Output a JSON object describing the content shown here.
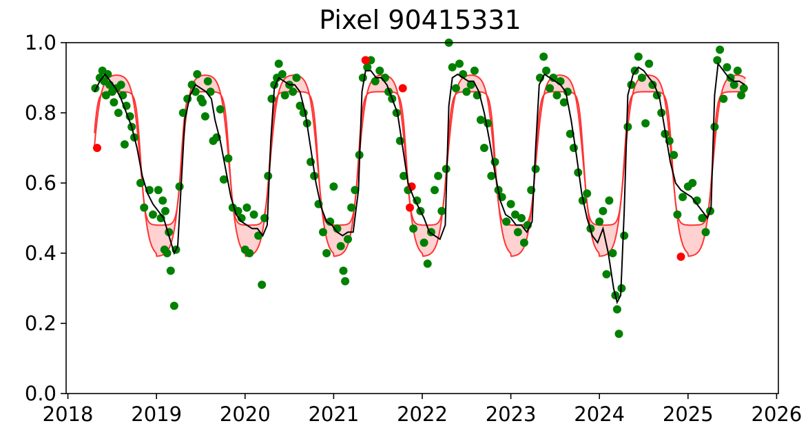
{
  "chart_data": {
    "type": "scatter",
    "title": "Pixel 90415331",
    "xlabel": "",
    "ylabel": "",
    "xlim": [
      2017.98,
      2026.02
    ],
    "ylim": [
      0.0,
      1.0
    ],
    "xticks": [
      2018,
      2019,
      2020,
      2021,
      2022,
      2023,
      2024,
      2025,
      2026
    ],
    "yticks": [
      0.0,
      0.2,
      0.4,
      0.6,
      0.8,
      1.0
    ],
    "xtick_labels": [
      "2018",
      "2019",
      "2020",
      "2021",
      "2022",
      "2023",
      "2024",
      "2025",
      "2026"
    ],
    "ytick_labels": [
      "0.0",
      "0.2",
      "0.4",
      "0.6",
      "0.8",
      "1.0"
    ],
    "grid": false,
    "colors": {
      "observed": "#008000",
      "outlier": "#ff0000",
      "envelope": "#ff3333",
      "band": "#ffcccc",
      "smoothed": "#000000"
    },
    "envelope": {
      "inner_high": 0.86,
      "outer_high": 0.91,
      "inner_low": 0.48,
      "outer_low": 0.39,
      "start": 2018.3,
      "end": 2025.65,
      "season_years": [
        2018,
        2019,
        2020,
        2021,
        2022,
        2023,
        2024,
        2025
      ],
      "green_up": 0.28,
      "senescence": 0.82
    },
    "outliers": [
      {
        "x": 2018.33,
        "y": 0.7
      },
      {
        "x": 2021.36,
        "y": 0.95
      },
      {
        "x": 2021.78,
        "y": 0.87
      },
      {
        "x": 2021.86,
        "y": 0.53
      },
      {
        "x": 2021.88,
        "y": 0.59
      },
      {
        "x": 2024.92,
        "y": 0.39
      }
    ],
    "observed": [
      {
        "x": 2018.31,
        "y": 0.87
      },
      {
        "x": 2018.36,
        "y": 0.9
      },
      {
        "x": 2018.39,
        "y": 0.92
      },
      {
        "x": 2018.41,
        "y": 0.89
      },
      {
        "x": 2018.43,
        "y": 0.85
      },
      {
        "x": 2018.45,
        "y": 0.91
      },
      {
        "x": 2018.47,
        "y": 0.88
      },
      {
        "x": 2018.5,
        "y": 0.86
      },
      {
        "x": 2018.52,
        "y": 0.83
      },
      {
        "x": 2018.55,
        "y": 0.87
      },
      {
        "x": 2018.57,
        "y": 0.8
      },
      {
        "x": 2018.6,
        "y": 0.88
      },
      {
        "x": 2018.62,
        "y": 0.85
      },
      {
        "x": 2018.64,
        "y": 0.71
      },
      {
        "x": 2018.66,
        "y": 0.82
      },
      {
        "x": 2018.7,
        "y": 0.79
      },
      {
        "x": 2018.72,
        "y": 0.76
      },
      {
        "x": 2018.75,
        "y": 0.73
      },
      {
        "x": 2018.82,
        "y": 0.6
      },
      {
        "x": 2018.86,
        "y": 0.53
      },
      {
        "x": 2018.92,
        "y": 0.58
      },
      {
        "x": 2018.96,
        "y": 0.51
      },
      {
        "x": 2019.02,
        "y": 0.58
      },
      {
        "x": 2019.05,
        "y": 0.5
      },
      {
        "x": 2019.07,
        "y": 0.55
      },
      {
        "x": 2019.09,
        "y": 0.41
      },
      {
        "x": 2019.1,
        "y": 0.52
      },
      {
        "x": 2019.12,
        "y": 0.4
      },
      {
        "x": 2019.14,
        "y": 0.46
      },
      {
        "x": 2019.16,
        "y": 0.35
      },
      {
        "x": 2019.2,
        "y": 0.25
      },
      {
        "x": 2019.22,
        "y": 0.41
      },
      {
        "x": 2019.26,
        "y": 0.59
      },
      {
        "x": 2019.3,
        "y": 0.8
      },
      {
        "x": 2019.35,
        "y": 0.84
      },
      {
        "x": 2019.4,
        "y": 0.88
      },
      {
        "x": 2019.44,
        "y": 0.86
      },
      {
        "x": 2019.46,
        "y": 0.91
      },
      {
        "x": 2019.5,
        "y": 0.84
      },
      {
        "x": 2019.52,
        "y": 0.83
      },
      {
        "x": 2019.55,
        "y": 0.79
      },
      {
        "x": 2019.58,
        "y": 0.89
      },
      {
        "x": 2019.61,
        "y": 0.86
      },
      {
        "x": 2019.64,
        "y": 0.72
      },
      {
        "x": 2019.68,
        "y": 0.73
      },
      {
        "x": 2019.72,
        "y": 0.81
      },
      {
        "x": 2019.76,
        "y": 0.61
      },
      {
        "x": 2019.81,
        "y": 0.67
      },
      {
        "x": 2019.86,
        "y": 0.53
      },
      {
        "x": 2019.92,
        "y": 0.52
      },
      {
        "x": 2019.96,
        "y": 0.5
      },
      {
        "x": 2020.0,
        "y": 0.41
      },
      {
        "x": 2020.02,
        "y": 0.53
      },
      {
        "x": 2020.05,
        "y": 0.4
      },
      {
        "x": 2020.1,
        "y": 0.51
      },
      {
        "x": 2020.15,
        "y": 0.45
      },
      {
        "x": 2020.19,
        "y": 0.31
      },
      {
        "x": 2020.22,
        "y": 0.5
      },
      {
        "x": 2020.26,
        "y": 0.62
      },
      {
        "x": 2020.3,
        "y": 0.84
      },
      {
        "x": 2020.33,
        "y": 0.88
      },
      {
        "x": 2020.36,
        "y": 0.9
      },
      {
        "x": 2020.38,
        "y": 0.94
      },
      {
        "x": 2020.42,
        "y": 0.91
      },
      {
        "x": 2020.45,
        "y": 0.85
      },
      {
        "x": 2020.5,
        "y": 0.88
      },
      {
        "x": 2020.54,
        "y": 0.86
      },
      {
        "x": 2020.58,
        "y": 0.9
      },
      {
        "x": 2020.62,
        "y": 0.82
      },
      {
        "x": 2020.66,
        "y": 0.8
      },
      {
        "x": 2020.7,
        "y": 0.77
      },
      {
        "x": 2020.74,
        "y": 0.66
      },
      {
        "x": 2020.78,
        "y": 0.62
      },
      {
        "x": 2020.83,
        "y": 0.54
      },
      {
        "x": 2020.88,
        "y": 0.46
      },
      {
        "x": 2020.92,
        "y": 0.4
      },
      {
        "x": 2020.96,
        "y": 0.49
      },
      {
        "x": 2021.0,
        "y": 0.59
      },
      {
        "x": 2021.04,
        "y": 0.47
      },
      {
        "x": 2021.08,
        "y": 0.42
      },
      {
        "x": 2021.11,
        "y": 0.35
      },
      {
        "x": 2021.13,
        "y": 0.32
      },
      {
        "x": 2021.16,
        "y": 0.44
      },
      {
        "x": 2021.2,
        "y": 0.53
      },
      {
        "x": 2021.24,
        "y": 0.58
      },
      {
        "x": 2021.29,
        "y": 0.68
      },
      {
        "x": 2021.33,
        "y": 0.9
      },
      {
        "x": 2021.38,
        "y": 0.93
      },
      {
        "x": 2021.42,
        "y": 0.95
      },
      {
        "x": 2021.47,
        "y": 0.89
      },
      {
        "x": 2021.52,
        "y": 0.92
      },
      {
        "x": 2021.58,
        "y": 0.9
      },
      {
        "x": 2021.62,
        "y": 0.86
      },
      {
        "x": 2021.66,
        "y": 0.84
      },
      {
        "x": 2021.71,
        "y": 0.8
      },
      {
        "x": 2021.75,
        "y": 0.72
      },
      {
        "x": 2021.79,
        "y": 0.62
      },
      {
        "x": 2021.84,
        "y": 0.58
      },
      {
        "x": 2021.9,
        "y": 0.47
      },
      {
        "x": 2021.94,
        "y": 0.55
      },
      {
        "x": 2021.98,
        "y": 0.52
      },
      {
        "x": 2022.02,
        "y": 0.43
      },
      {
        "x": 2022.06,
        "y": 0.37
      },
      {
        "x": 2022.1,
        "y": 0.46
      },
      {
        "x": 2022.14,
        "y": 0.58
      },
      {
        "x": 2022.18,
        "y": 0.62
      },
      {
        "x": 2022.22,
        "y": 0.52
      },
      {
        "x": 2022.27,
        "y": 0.64
      },
      {
        "x": 2022.3,
        "y": 1.0
      },
      {
        "x": 2022.34,
        "y": 0.93
      },
      {
        "x": 2022.38,
        "y": 0.87
      },
      {
        "x": 2022.42,
        "y": 0.94
      },
      {
        "x": 2022.46,
        "y": 0.91
      },
      {
        "x": 2022.5,
        "y": 0.86
      },
      {
        "x": 2022.55,
        "y": 0.88
      },
      {
        "x": 2022.59,
        "y": 0.92
      },
      {
        "x": 2022.62,
        "y": 0.85
      },
      {
        "x": 2022.66,
        "y": 0.78
      },
      {
        "x": 2022.7,
        "y": 0.7
      },
      {
        "x": 2022.74,
        "y": 0.77
      },
      {
        "x": 2022.78,
        "y": 0.62
      },
      {
        "x": 2022.82,
        "y": 0.66
      },
      {
        "x": 2022.86,
        "y": 0.58
      },
      {
        "x": 2022.9,
        "y": 0.56
      },
      {
        "x": 2022.95,
        "y": 0.49
      },
      {
        "x": 2023.0,
        "y": 0.54
      },
      {
        "x": 2023.05,
        "y": 0.51
      },
      {
        "x": 2023.08,
        "y": 0.46
      },
      {
        "x": 2023.12,
        "y": 0.5
      },
      {
        "x": 2023.15,
        "y": 0.43
      },
      {
        "x": 2023.19,
        "y": 0.48
      },
      {
        "x": 2023.23,
        "y": 0.58
      },
      {
        "x": 2023.28,
        "y": 0.64
      },
      {
        "x": 2023.33,
        "y": 0.9
      },
      {
        "x": 2023.37,
        "y": 0.96
      },
      {
        "x": 2023.4,
        "y": 0.92
      },
      {
        "x": 2023.44,
        "y": 0.87
      },
      {
        "x": 2023.48,
        "y": 0.9
      },
      {
        "x": 2023.52,
        "y": 0.85
      },
      {
        "x": 2023.56,
        "y": 0.89
      },
      {
        "x": 2023.6,
        "y": 0.83
      },
      {
        "x": 2023.64,
        "y": 0.86
      },
      {
        "x": 2023.67,
        "y": 0.74
      },
      {
        "x": 2023.71,
        "y": 0.7
      },
      {
        "x": 2023.76,
        "y": 0.63
      },
      {
        "x": 2023.81,
        "y": 0.55
      },
      {
        "x": 2023.86,
        "y": 0.57
      },
      {
        "x": 2023.9,
        "y": 0.47
      },
      {
        "x": 2024.0,
        "y": 0.49
      },
      {
        "x": 2024.04,
        "y": 0.52
      },
      {
        "x": 2024.08,
        "y": 0.34
      },
      {
        "x": 2024.11,
        "y": 0.55
      },
      {
        "x": 2024.15,
        "y": 0.4
      },
      {
        "x": 2024.18,
        "y": 0.28
      },
      {
        "x": 2024.2,
        "y": 0.24
      },
      {
        "x": 2024.22,
        "y": 0.17
      },
      {
        "x": 2024.25,
        "y": 0.3
      },
      {
        "x": 2024.28,
        "y": 0.45
      },
      {
        "x": 2024.32,
        "y": 0.76
      },
      {
        "x": 2024.36,
        "y": 0.88
      },
      {
        "x": 2024.4,
        "y": 0.92
      },
      {
        "x": 2024.44,
        "y": 0.96
      },
      {
        "x": 2024.48,
        "y": 0.9
      },
      {
        "x": 2024.52,
        "y": 0.77
      },
      {
        "x": 2024.56,
        "y": 0.94
      },
      {
        "x": 2024.6,
        "y": 0.88
      },
      {
        "x": 2024.65,
        "y": 0.85
      },
      {
        "x": 2024.7,
        "y": 0.8
      },
      {
        "x": 2024.74,
        "y": 0.74
      },
      {
        "x": 2024.79,
        "y": 0.72
      },
      {
        "x": 2024.84,
        "y": 0.68
      },
      {
        "x": 2024.88,
        "y": 0.51
      },
      {
        "x": 2024.94,
        "y": 0.56
      },
      {
        "x": 2025.0,
        "y": 0.59
      },
      {
        "x": 2025.05,
        "y": 0.6
      },
      {
        "x": 2025.1,
        "y": 0.55
      },
      {
        "x": 2025.16,
        "y": 0.5
      },
      {
        "x": 2025.2,
        "y": 0.46
      },
      {
        "x": 2025.25,
        "y": 0.52
      },
      {
        "x": 2025.3,
        "y": 0.76
      },
      {
        "x": 2025.33,
        "y": 0.95
      },
      {
        "x": 2025.36,
        "y": 0.98
      },
      {
        "x": 2025.4,
        "y": 0.84
      },
      {
        "x": 2025.44,
        "y": 0.93
      },
      {
        "x": 2025.48,
        "y": 0.9
      },
      {
        "x": 2025.52,
        "y": 0.88
      },
      {
        "x": 2025.56,
        "y": 0.92
      },
      {
        "x": 2025.6,
        "y": 0.85
      },
      {
        "x": 2025.63,
        "y": 0.87
      }
    ],
    "smoothed": [
      [
        2018.3,
        0.86
      ],
      [
        2018.36,
        0.89
      ],
      [
        2018.42,
        0.91
      ],
      [
        2018.48,
        0.89
      ],
      [
        2018.54,
        0.87
      ],
      [
        2018.6,
        0.84
      ],
      [
        2018.66,
        0.8
      ],
      [
        2018.72,
        0.76
      ],
      [
        2018.78,
        0.7
      ],
      [
        2018.84,
        0.62
      ],
      [
        2018.9,
        0.57
      ],
      [
        2018.96,
        0.54
      ],
      [
        2019.02,
        0.52
      ],
      [
        2019.08,
        0.5
      ],
      [
        2019.14,
        0.45
      ],
      [
        2019.2,
        0.4
      ],
      [
        2019.24,
        0.42
      ],
      [
        2019.28,
        0.6
      ],
      [
        2019.32,
        0.78
      ],
      [
        2019.38,
        0.85
      ],
      [
        2019.44,
        0.88
      ],
      [
        2019.5,
        0.87
      ],
      [
        2019.56,
        0.86
      ],
      [
        2019.62,
        0.84
      ],
      [
        2019.66,
        0.78
      ],
      [
        2019.72,
        0.72
      ],
      [
        2019.78,
        0.64
      ],
      [
        2019.84,
        0.56
      ],
      [
        2019.9,
        0.51
      ],
      [
        2019.96,
        0.49
      ],
      [
        2020.02,
        0.48
      ],
      [
        2020.08,
        0.47
      ],
      [
        2020.14,
        0.47
      ],
      [
        2020.2,
        0.45
      ],
      [
        2020.25,
        0.48
      ],
      [
        2020.29,
        0.72
      ],
      [
        2020.33,
        0.87
      ],
      [
        2020.38,
        0.9
      ],
      [
        2020.44,
        0.89
      ],
      [
        2020.5,
        0.88
      ],
      [
        2020.56,
        0.88
      ],
      [
        2020.62,
        0.86
      ],
      [
        2020.68,
        0.8
      ],
      [
        2020.74,
        0.7
      ],
      [
        2020.8,
        0.6
      ],
      [
        2020.86,
        0.53
      ],
      [
        2020.92,
        0.49
      ],
      [
        2020.98,
        0.48
      ],
      [
        2021.04,
        0.46
      ],
      [
        2021.1,
        0.45
      ],
      [
        2021.16,
        0.46
      ],
      [
        2021.22,
        0.46
      ],
      [
        2021.28,
        0.58
      ],
      [
        2021.32,
        0.86
      ],
      [
        2021.36,
        0.92
      ],
      [
        2021.42,
        0.92
      ],
      [
        2021.48,
        0.9
      ],
      [
        2021.54,
        0.9
      ],
      [
        2021.6,
        0.88
      ],
      [
        2021.66,
        0.84
      ],
      [
        2021.72,
        0.8
      ],
      [
        2021.78,
        0.7
      ],
      [
        2021.84,
        0.6
      ],
      [
        2021.9,
        0.56
      ],
      [
        2021.96,
        0.53
      ],
      [
        2022.02,
        0.5
      ],
      [
        2022.08,
        0.46
      ],
      [
        2022.14,
        0.45
      ],
      [
        2022.2,
        0.44
      ],
      [
        2022.26,
        0.48
      ],
      [
        2022.3,
        0.82
      ],
      [
        2022.34,
        0.9
      ],
      [
        2022.4,
        0.91
      ],
      [
        2022.46,
        0.9
      ],
      [
        2022.52,
        0.89
      ],
      [
        2022.58,
        0.89
      ],
      [
        2022.64,
        0.86
      ],
      [
        2022.7,
        0.8
      ],
      [
        2022.76,
        0.72
      ],
      [
        2022.82,
        0.63
      ],
      [
        2022.88,
        0.55
      ],
      [
        2022.94,
        0.51
      ],
      [
        2023.0,
        0.5
      ],
      [
        2023.06,
        0.48
      ],
      [
        2023.12,
        0.48
      ],
      [
        2023.18,
        0.46
      ],
      [
        2023.24,
        0.49
      ],
      [
        2023.28,
        0.7
      ],
      [
        2023.32,
        0.88
      ],
      [
        2023.38,
        0.91
      ],
      [
        2023.44,
        0.9
      ],
      [
        2023.5,
        0.89
      ],
      [
        2023.56,
        0.88
      ],
      [
        2023.62,
        0.86
      ],
      [
        2023.68,
        0.78
      ],
      [
        2023.74,
        0.68
      ],
      [
        2023.8,
        0.57
      ],
      [
        2023.86,
        0.5
      ],
      [
        2023.92,
        0.45
      ],
      [
        2023.98,
        0.43
      ],
      [
        2024.04,
        0.47
      ],
      [
        2024.1,
        0.4
      ],
      [
        2024.16,
        0.3
      ],
      [
        2024.2,
        0.26
      ],
      [
        2024.24,
        0.28
      ],
      [
        2024.28,
        0.52
      ],
      [
        2024.32,
        0.85
      ],
      [
        2024.38,
        0.91
      ],
      [
        2024.44,
        0.93
      ],
      [
        2024.5,
        0.92
      ],
      [
        2024.56,
        0.9
      ],
      [
        2024.62,
        0.88
      ],
      [
        2024.68,
        0.84
      ],
      [
        2024.74,
        0.75
      ],
      [
        2024.8,
        0.66
      ],
      [
        2024.86,
        0.6
      ],
      [
        2024.92,
        0.58
      ],
      [
        2024.98,
        0.57
      ],
      [
        2025.04,
        0.56
      ],
      [
        2025.1,
        0.54
      ],
      [
        2025.16,
        0.52
      ],
      [
        2025.22,
        0.5
      ],
      [
        2025.26,
        0.53
      ],
      [
        2025.3,
        0.85
      ],
      [
        2025.34,
        0.94
      ],
      [
        2025.4,
        0.92
      ],
      [
        2025.46,
        0.9
      ],
      [
        2025.52,
        0.89
      ],
      [
        2025.58,
        0.89
      ],
      [
        2025.64,
        0.88
      ]
    ]
  }
}
